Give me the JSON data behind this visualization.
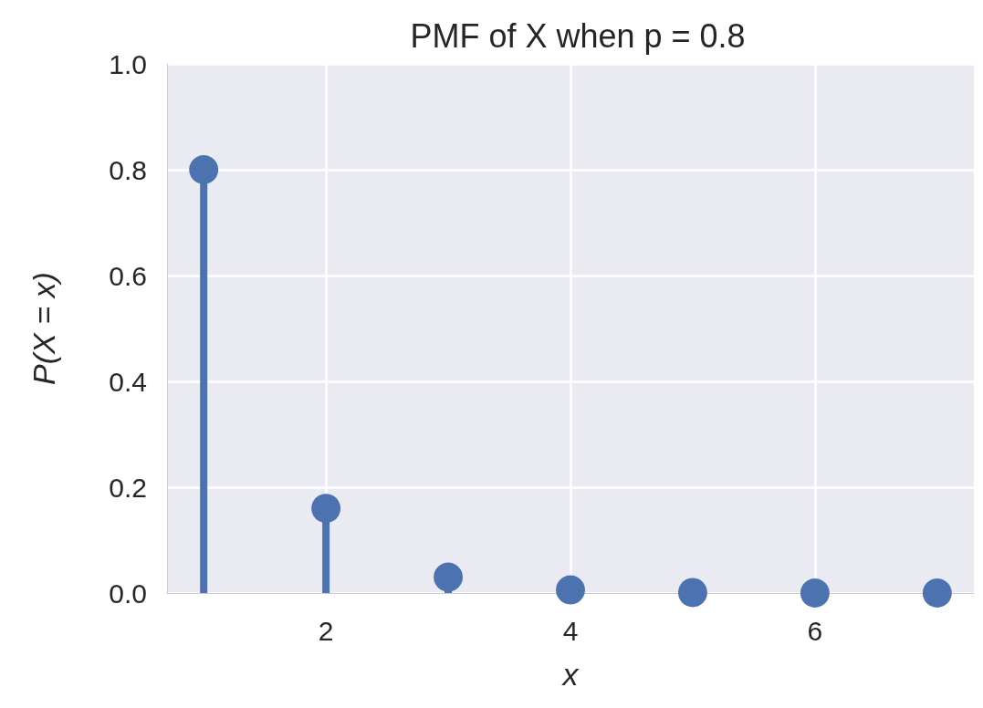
{
  "chart_data": {
    "type": "lollipop",
    "title": "PMF of X when p = 0.8",
    "xlabel": "x",
    "ylabel": "P(X = x)",
    "x": [
      1,
      2,
      3,
      4,
      5,
      6,
      7
    ],
    "values": [
      0.8,
      0.16,
      0.03,
      0.006,
      0.001,
      0,
      0
    ],
    "color": "#4c72b0",
    "xlim": [
      0.7,
      7.3
    ],
    "xticks": [
      2,
      4,
      6
    ],
    "ylim": [
      0,
      1
    ],
    "yticks": [
      {
        "value": 0,
        "label": "0.0"
      },
      0.2,
      0.4,
      0.6,
      0.8,
      {
        "value": 1,
        "label": "1.0"
      }
    ],
    "grid": true,
    "marker": "circle"
  }
}
